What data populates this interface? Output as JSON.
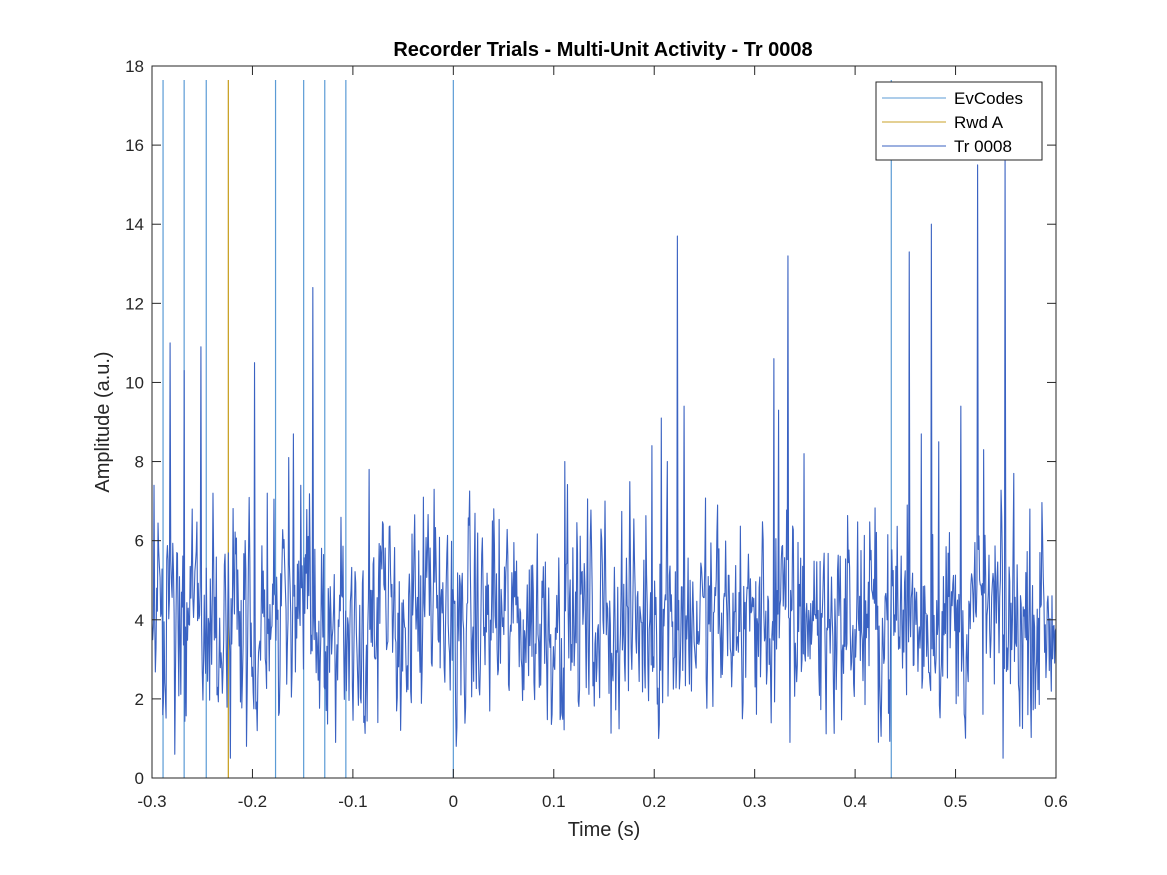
{
  "chart_data": {
    "type": "line",
    "title": "Recorder Trials - Multi-Unit Activity - Tr 0008",
    "xlabel": "Time (s)",
    "ylabel": "Amplitude (a.u.)",
    "xlim": [
      -0.3,
      0.6
    ],
    "ylim": [
      0,
      18
    ],
    "xticks": [
      -0.3,
      -0.2,
      -0.1,
      0,
      0.1,
      0.2,
      0.3,
      0.4,
      0.5,
      0.6
    ],
    "xtick_labels": [
      "-0.3",
      "-0.2",
      "-0.1",
      "0",
      "0.1",
      "0.2",
      "0.3",
      "0.4",
      "0.5",
      "0.6"
    ],
    "yticks": [
      0,
      2,
      4,
      6,
      8,
      10,
      12,
      14,
      16,
      18
    ],
    "ytick_labels": [
      "0",
      "2",
      "4",
      "6",
      "8",
      "10",
      "12",
      "14",
      "16",
      "18"
    ],
    "grid": false,
    "legend_position": "top-right",
    "series": [
      {
        "name": "EvCodes",
        "kind": "vertical-lines",
        "color": "#5b9bd5",
        "x": [
          -0.289,
          -0.268,
          -0.246,
          -0.177,
          -0.149,
          -0.128,
          -0.107,
          0.0,
          0.436
        ]
      },
      {
        "name": "Rwd A",
        "kind": "vertical-lines",
        "color": "#c9a227",
        "x": [
          -0.224
        ]
      },
      {
        "name": "Tr 0008",
        "kind": "line",
        "color": "#3a62c2",
        "baseline": 4.0,
        "noise_amplitude": 1.2,
        "samples": 1350,
        "peaks": [
          [
            -0.298,
            7.4
          ],
          [
            -0.289,
            1.6
          ],
          [
            -0.282,
            11.0
          ],
          [
            -0.277,
            0.6
          ],
          [
            -0.268,
            10.3
          ],
          [
            -0.26,
            6.8
          ],
          [
            -0.251,
            10.9
          ],
          [
            -0.239,
            7.2
          ],
          [
            -0.222,
            0.5
          ],
          [
            -0.206,
            0.8
          ],
          [
            -0.198,
            10.5
          ],
          [
            -0.185,
            7.2
          ],
          [
            -0.164,
            8.1
          ],
          [
            -0.159,
            8.7
          ],
          [
            -0.152,
            7.4
          ],
          [
            -0.14,
            12.4
          ],
          [
            -0.117,
            0.9
          ],
          [
            -0.084,
            7.8
          ],
          [
            -0.075,
            1.4
          ],
          [
            -0.03,
            7.1
          ],
          [
            -0.019,
            7.3
          ],
          [
            0.003,
            0.8
          ],
          [
            0.039,
            6.5
          ],
          [
            0.111,
            8.0
          ],
          [
            0.151,
            7.0
          ],
          [
            0.198,
            8.4
          ],
          [
            0.207,
            9.1
          ],
          [
            0.213,
            8.0
          ],
          [
            0.223,
            13.7
          ],
          [
            0.23,
            9.4
          ],
          [
            0.263,
            6.9
          ],
          [
            0.319,
            10.6
          ],
          [
            0.324,
            9.3
          ],
          [
            0.333,
            13.2
          ],
          [
            0.335,
            0.9
          ],
          [
            0.349,
            8.2
          ],
          [
            0.452,
            6.9
          ],
          [
            0.454,
            13.3
          ],
          [
            0.466,
            8.7
          ],
          [
            0.476,
            14.0
          ],
          [
            0.483,
            8.5
          ],
          [
            0.505,
            9.4
          ],
          [
            0.522,
            15.5
          ],
          [
            0.528,
            8.3
          ],
          [
            0.549,
            15.6
          ],
          [
            0.547,
            0.5
          ],
          [
            0.558,
            7.7
          ],
          [
            0.572,
            1.6
          ],
          [
            0.574,
            6.8
          ],
          [
            0.584,
            5.7
          ]
        ]
      }
    ]
  }
}
